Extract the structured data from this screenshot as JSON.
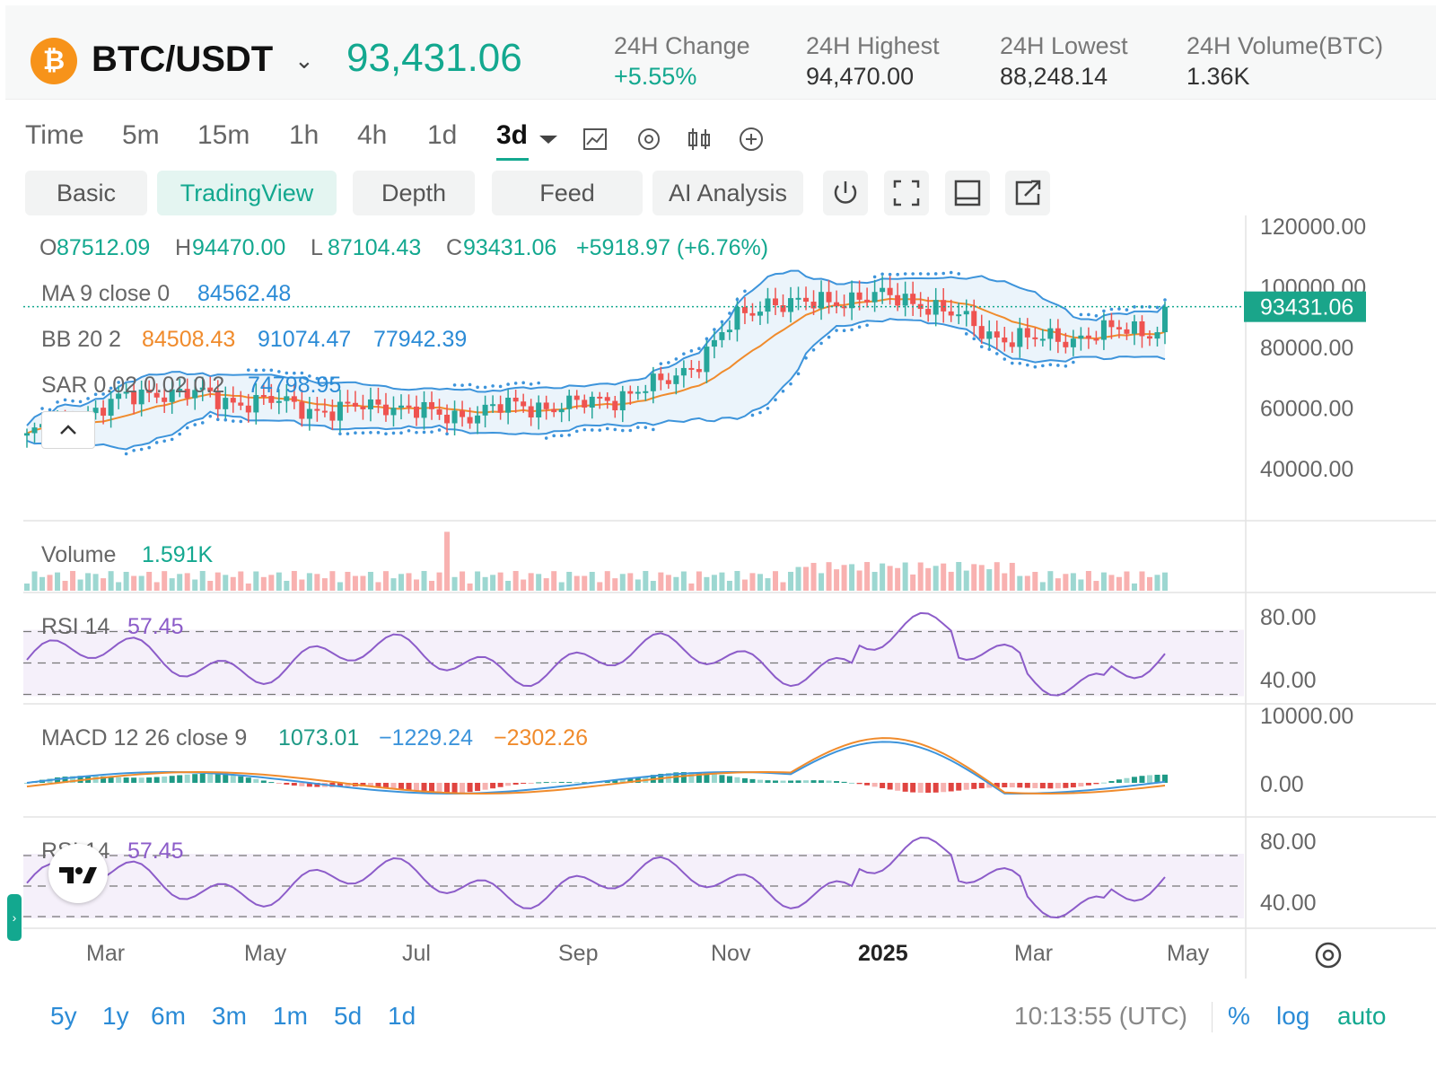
{
  "header": {
    "coin_symbol": "₿",
    "pair": "BTC/USDT",
    "last_price": "93,431.06",
    "stats": [
      {
        "label": "24H Change",
        "value": "+5.55%"
      },
      {
        "label": "24H Highest",
        "value": "94,470.00"
      },
      {
        "label": "24H Lowest",
        "value": "88,248.14"
      },
      {
        "label": "24H Volume(BTC)",
        "value": "1.36K"
      }
    ]
  },
  "timeframes": [
    "Time",
    "5m",
    "15m",
    "1h",
    "4h",
    "1d",
    "3d"
  ],
  "active_timeframe": "3d",
  "tabs": [
    "Basic",
    "TradingView",
    "Depth",
    "Feed",
    "AI Analysis"
  ],
  "active_tab": "TradingView",
  "legend": {
    "ohlc": [
      {
        "k": "O",
        "v": "87512.09"
      },
      {
        "k": "H",
        "v": "94470.00"
      },
      {
        "k": "L",
        "v": "87104.43"
      },
      {
        "k": "C",
        "v": "93431.06"
      }
    ],
    "change": "+5918.97 (+6.76%)",
    "ma": {
      "label": "MA 9 close 0",
      "value": "84562.48"
    },
    "bb": {
      "label": "BB 20 2",
      "basis": "84508.43",
      "upper": "91074.47",
      "lower": "77942.39"
    },
    "sar": {
      "label": "SAR 0.02 0.02 0.2",
      "value": "74798.95"
    }
  },
  "price_axis": {
    "ticks": [
      "120000.00",
      "100000.00",
      "80000.00",
      "60000.00",
      "40000.00"
    ],
    "current": "93431.06"
  },
  "volume_pane": {
    "label": "Volume",
    "value": "1.591K"
  },
  "rsi_pane": {
    "label": "RSI 14",
    "value": "57.45",
    "ticks": [
      "80.00",
      "40.00"
    ]
  },
  "macd_pane": {
    "label": "MACD 12 26 close 9",
    "hist": "1073.01",
    "macd": "−1229.24",
    "signal": "−2302.26",
    "ticks": [
      "10000.00",
      "0.00"
    ]
  },
  "rsi_pane2": {
    "label": "RSI 14",
    "value": "57.45",
    "ticks": [
      "80.00",
      "40.00"
    ]
  },
  "time_axis": [
    "Mar",
    "May",
    "Jul",
    "Sep",
    "Nov",
    "2025",
    "Mar",
    "May"
  ],
  "ranges": [
    "5y",
    "1y",
    "6m",
    "3m",
    "1m",
    "5d",
    "1d"
  ],
  "clock": "10:13:55 (UTC)",
  "scale_buttons": [
    "%",
    "log",
    "auto"
  ],
  "colors": {
    "up": "#26a69a",
    "down": "#ef5350",
    "accent": "#13a88f",
    "bb": "#3d94db",
    "ma": "#f08b2c",
    "rsi": "#8c5cc9"
  }
}
